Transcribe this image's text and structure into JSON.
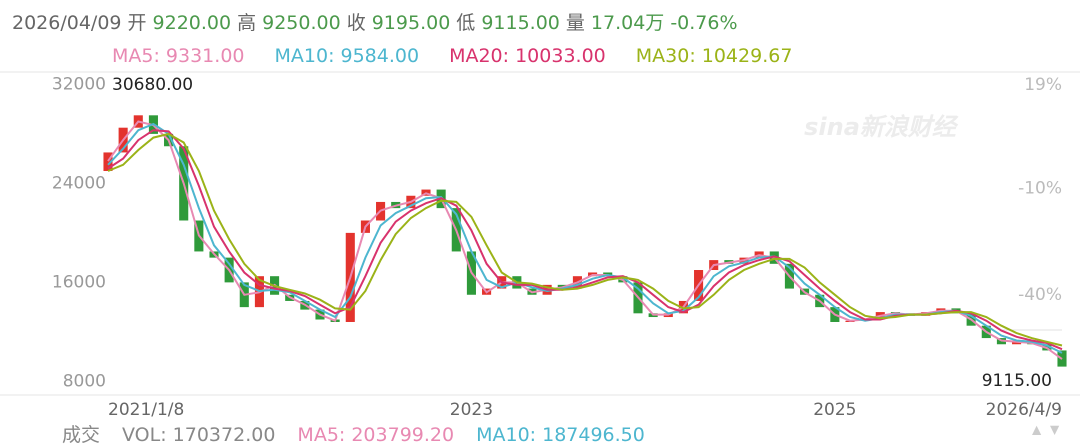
{
  "header": {
    "date": "2026/04/09",
    "items": [
      {
        "label": "开",
        "value": "9220.00"
      },
      {
        "label": "高",
        "value": "9250.00"
      },
      {
        "label": "收",
        "value": "9195.00"
      },
      {
        "label": "低",
        "value": "9115.00"
      },
      {
        "label": "量",
        "value": "17.04万"
      }
    ],
    "change": "-0.76%",
    "value_color": "#4c9a4c"
  },
  "chart_data": {
    "type": "candlestick",
    "categories": [
      "2021/1/8",
      null,
      null,
      null,
      null,
      null,
      null,
      null,
      null,
      null,
      null,
      null,
      null,
      null,
      null,
      null,
      null,
      null,
      null,
      null,
      null,
      null,
      null,
      null,
      "2023",
      null,
      null,
      null,
      null,
      null,
      null,
      null,
      null,
      null,
      null,
      null,
      null,
      null,
      null,
      null,
      null,
      null,
      null,
      null,
      null,
      null,
      null,
      null,
      "2025",
      null,
      null,
      null,
      null,
      null,
      null,
      null,
      null,
      null,
      null,
      null,
      null,
      null,
      null,
      "2026/4/9"
    ],
    "open": [
      25000,
      26500,
      28500,
      29500,
      28000,
      27000,
      21000,
      18500,
      18000,
      16000,
      14000,
      16500,
      15000,
      14500,
      13800,
      13000,
      12800,
      20000,
      21000,
      22500,
      22000,
      23000,
      23500,
      22000,
      18500,
      15000,
      15500,
      16500,
      15500,
      15000,
      15800,
      15500,
      16500,
      16800,
      16500,
      16000,
      13500,
      13200,
      13500,
      14500,
      17000,
      17800,
      17500,
      18000,
      18500,
      17500,
      15500,
      15000,
      14000,
      12800,
      12900,
      13000,
      13600,
      13500,
      13300,
      13600,
      13900,
      13500,
      12500,
      11500,
      11000,
      11300,
      11000,
      10500
    ],
    "close": [
      26500,
      28500,
      29500,
      28000,
      27000,
      21000,
      18500,
      18000,
      16000,
      14000,
      16500,
      15000,
      14500,
      13800,
      13000,
      12800,
      20000,
      21000,
      22500,
      22000,
      23000,
      23500,
      22000,
      18500,
      15000,
      15500,
      16500,
      15500,
      15000,
      15800,
      15500,
      16500,
      16800,
      16500,
      16000,
      13500,
      13200,
      13500,
      14500,
      17000,
      17800,
      17500,
      18000,
      18500,
      17500,
      15500,
      15000,
      14000,
      12800,
      12900,
      13000,
      13600,
      13500,
      13300,
      13600,
      13900,
      13500,
      12500,
      11500,
      11000,
      11300,
      11000,
      10500,
      9195
    ],
    "up_color": "#e3332d",
    "down_color": "#2f9a3a",
    "series": [
      {
        "name": "MA5",
        "label": "MA5: 9331.00",
        "color": "#e889b2",
        "values": [
          25800,
          27500,
          29000,
          28700,
          27500,
          24000,
          19800,
          18300,
          17000,
          15000,
          15200,
          15800,
          14800,
          14200,
          13400,
          12900,
          16400,
          20500,
          21800,
          22200,
          22500,
          23200,
          22800,
          20200,
          16800,
          15200,
          16000,
          16000,
          15200,
          15400,
          15600,
          16000,
          16600,
          16600,
          16200,
          14800,
          13400,
          13400,
          14000,
          15800,
          17400,
          17600,
          17800,
          18200,
          18000,
          16500,
          15200,
          14500,
          13400,
          12900,
          13000,
          13300,
          13500,
          13400,
          13500,
          13700,
          13700,
          13000,
          12000,
          11300,
          11200,
          11100,
          10700,
          9800
        ]
      },
      {
        "name": "MA10",
        "label": "MA10: 9584.00",
        "color": "#4db6cf",
        "values": [
          25500,
          26800,
          28300,
          28800,
          28000,
          25500,
          22000,
          19000,
          17500,
          15800,
          15300,
          15400,
          15200,
          14500,
          13800,
          13200,
          14800,
          18000,
          20600,
          21600,
          22200,
          22800,
          22900,
          21500,
          18500,
          16200,
          15600,
          16000,
          15600,
          15300,
          15500,
          15800,
          16300,
          16600,
          16400,
          15500,
          14300,
          13500,
          13700,
          14800,
          16500,
          17300,
          17600,
          18000,
          18100,
          17200,
          15900,
          15000,
          14000,
          13200,
          12900,
          13100,
          13400,
          13400,
          13400,
          13600,
          13700,
          13300,
          12500,
          11700,
          11300,
          11200,
          10900,
          10300
        ]
      },
      {
        "name": "MA20",
        "label": "MA20: 10033.00",
        "color": "#d8336d",
        "values": [
          25200,
          26000,
          27500,
          28300,
          28200,
          26800,
          23800,
          20500,
          18500,
          16800,
          15800,
          15500,
          15300,
          14900,
          14200,
          13500,
          14000,
          16500,
          19200,
          20900,
          21800,
          22400,
          22800,
          22200,
          20200,
          17500,
          16000,
          15800,
          15800,
          15400,
          15400,
          15600,
          16000,
          16400,
          16500,
          16000,
          15000,
          14000,
          13600,
          14200,
          15700,
          16800,
          17400,
          17800,
          18100,
          17700,
          16600,
          15500,
          14500,
          13600,
          13000,
          13000,
          13300,
          13400,
          13400,
          13500,
          13700,
          13500,
          12900,
          12100,
          11600,
          11300,
          11100,
          10600
        ]
      },
      {
        "name": "MA30",
        "label": "MA30: 10429.67",
        "color": "#9bb318",
        "values": [
          25000,
          25500,
          26700,
          27700,
          28000,
          27300,
          25000,
          21800,
          19500,
          17500,
          16200,
          15700,
          15400,
          15100,
          14600,
          13900,
          13800,
          15300,
          17800,
          19900,
          21200,
          22000,
          22600,
          22500,
          21300,
          19000,
          16800,
          16000,
          15900,
          15600,
          15400,
          15500,
          15800,
          16200,
          16400,
          16200,
          15500,
          14500,
          13900,
          14000,
          15000,
          16200,
          17000,
          17500,
          17900,
          17900,
          17200,
          16000,
          15000,
          14000,
          13300,
          13100,
          13200,
          13400,
          13400,
          13500,
          13600,
          13600,
          13200,
          12500,
          11900,
          11500,
          11200,
          10900
        ]
      }
    ],
    "ylim": [
      6900,
      33000
    ],
    "yticks": [
      8000,
      16000,
      24000,
      32000
    ],
    "y2lim": [
      -68.1,
      22.7
    ],
    "y2ticks": [
      {
        "value": 19,
        "label": "19%"
      },
      {
        "value": -10,
        "label": "-10%"
      },
      {
        "value": -40,
        "label": "-40%"
      }
    ],
    "annotations": {
      "max": "30680.00",
      "min": "9115.00"
    },
    "watermark": "sina新浪财经"
  },
  "volume": {
    "title": "成交",
    "items": [
      {
        "text": "VOL: 170372.00",
        "color": "#888888"
      },
      {
        "text": "MA5: 203799.20",
        "color": "#e889b2"
      },
      {
        "text": "MA10: 187496.50",
        "color": "#4db6cf"
      }
    ]
  }
}
